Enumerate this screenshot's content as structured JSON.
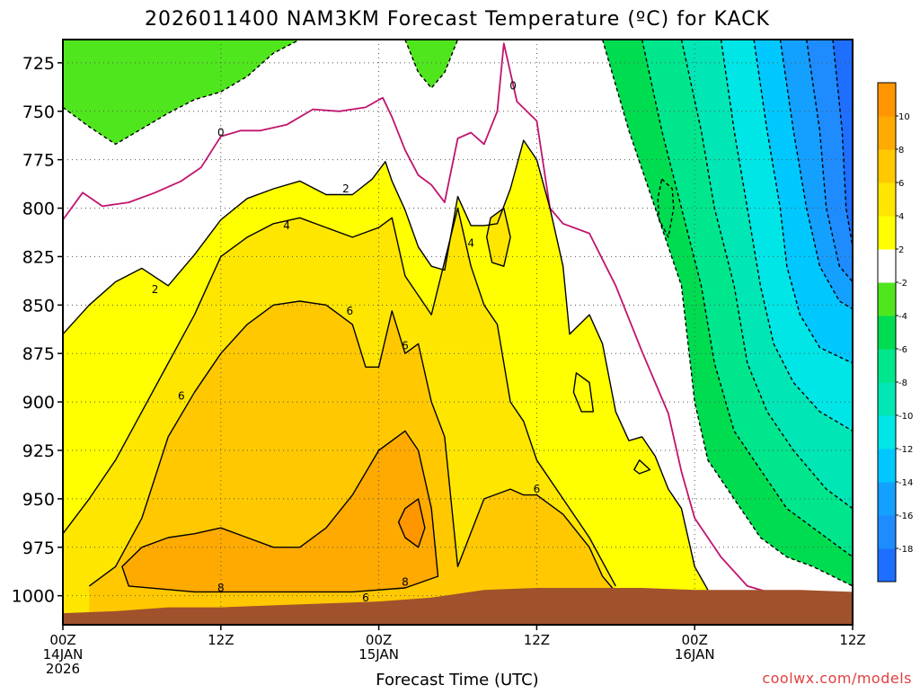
{
  "chart_data": {
    "type": "heatmap",
    "title": "2026011400 NAM3KM Forecast Temperature (ºC) for KACK",
    "xlabel": "Forecast Time (UTC)",
    "ylabel": "",
    "watermark": "coolwx.com/models",
    "x_unit": "forecast hour from 2026-01-14 00Z",
    "xlim": [
      0,
      60
    ],
    "ylim_hPa": [
      1015,
      713
    ],
    "y_ticks": [
      725,
      750,
      775,
      800,
      825,
      850,
      875,
      900,
      925,
      950,
      975,
      1000
    ],
    "x_ticks": [
      {
        "hour": 0,
        "lines": [
          "00Z",
          "14JAN",
          "2026"
        ]
      },
      {
        "hour": 12,
        "lines": [
          "12Z"
        ]
      },
      {
        "hour": 24,
        "lines": [
          "00Z",
          "15JAN"
        ]
      },
      {
        "hour": 36,
        "lines": [
          "12Z"
        ]
      },
      {
        "hour": 48,
        "lines": [
          "00Z",
          "16JAN"
        ]
      },
      {
        "hour": 60,
        "lines": [
          "12Z"
        ]
      }
    ],
    "colorbar": {
      "levels": [
        -20,
        -18,
        -16,
        -14,
        -12,
        -10,
        -8,
        -6,
        -4,
        -2,
        2,
        4,
        6,
        8,
        10,
        12
      ],
      "tick_labels": [
        "-18",
        "-16",
        "-14",
        "-12",
        "-10",
        "-8",
        "-6",
        "-4",
        "-2",
        "2",
        "4",
        "6",
        "8",
        "10"
      ],
      "colors": [
        "#1e6eff",
        "#1e8cff",
        "#14a0ff",
        "#00c8ff",
        "#00e6e6",
        "#00e6b4",
        "#00e68c",
        "#00dc50",
        "#50e61e",
        "#ffffff",
        "#ffff00",
        "#ffe600",
        "#ffc800",
        "#ffaa00",
        "#ff9600"
      ]
    },
    "contour_labels": [
      {
        "text": "0",
        "hour": 12,
        "p": 761
      },
      {
        "text": "0",
        "hour": 34.2,
        "p": 737
      },
      {
        "text": "2",
        "hour": 21.5,
        "p": 790
      },
      {
        "text": "2",
        "hour": 7,
        "p": 842
      },
      {
        "text": "4",
        "hour": 17,
        "p": 809
      },
      {
        "text": "4",
        "hour": 31,
        "p": 818
      },
      {
        "text": "6",
        "hour": 21.8,
        "p": 853
      },
      {
        "text": "6",
        "hour": 26,
        "p": 871
      },
      {
        "text": "6",
        "hour": 9,
        "p": 897
      },
      {
        "text": "6",
        "hour": 36,
        "p": 945
      },
      {
        "text": "6",
        "hour": 23,
        "p": 1001
      },
      {
        "text": "8",
        "hour": 12,
        "p": 996
      },
      {
        "text": "8",
        "hour": 26,
        "p": 993
      }
    ],
    "terrain_color": "#a0522d",
    "surface_pressure": [
      [
        0,
        1009
      ],
      [
        4,
        1008
      ],
      [
        8,
        1006
      ],
      [
        12,
        1006
      ],
      [
        16,
        1005
      ],
      [
        20,
        1004
      ],
      [
        24,
        1003
      ],
      [
        28,
        1001
      ],
      [
        32,
        997
      ],
      [
        36,
        996
      ],
      [
        40,
        996
      ],
      [
        44,
        996
      ],
      [
        48,
        997
      ],
      [
        52,
        997
      ],
      [
        56,
        997
      ],
      [
        60,
        998
      ]
    ],
    "isotherms": [
      {
        "level": -2,
        "points": [
          [
            0,
            748
          ],
          [
            2,
            758
          ],
          [
            4,
            767
          ],
          [
            6,
            759
          ],
          [
            8,
            751
          ],
          [
            10,
            744
          ],
          [
            12,
            740
          ],
          [
            14,
            732
          ],
          [
            16,
            720
          ],
          [
            18,
            713
          ]
        ]
      },
      {
        "level": -2,
        "points": [
          [
            26,
            713
          ],
          [
            27,
            730
          ],
          [
            28,
            738
          ],
          [
            29,
            730
          ],
          [
            30,
            713
          ]
        ]
      },
      {
        "level": 0,
        "points": [
          [
            0,
            806
          ],
          [
            1.5,
            792
          ],
          [
            3,
            799
          ],
          [
            5,
            797
          ],
          [
            7,
            792
          ],
          [
            9,
            786
          ],
          [
            10.5,
            779
          ],
          [
            12,
            763
          ],
          [
            13.5,
            760
          ],
          [
            15,
            760
          ],
          [
            17,
            757
          ],
          [
            19,
            749
          ],
          [
            21,
            750
          ],
          [
            23,
            748
          ],
          [
            24.3,
            743
          ],
          [
            25,
            753
          ],
          [
            26,
            770
          ],
          [
            27,
            783
          ],
          [
            28,
            788
          ],
          [
            29,
            797
          ],
          [
            30,
            764
          ],
          [
            31,
            761
          ],
          [
            32,
            767
          ],
          [
            33,
            750
          ],
          [
            33.5,
            715
          ],
          [
            34.5,
            745
          ],
          [
            36,
            755
          ],
          [
            37,
            800
          ],
          [
            38,
            808
          ],
          [
            40,
            813
          ],
          [
            42,
            840
          ],
          [
            44,
            874
          ],
          [
            46,
            906
          ],
          [
            47,
            936
          ],
          [
            48,
            960
          ],
          [
            50,
            980
          ],
          [
            52,
            995
          ],
          [
            54,
            999
          ],
          [
            56,
            999
          ]
        ]
      },
      {
        "level": 2,
        "points": [
          [
            0,
            865
          ],
          [
            2,
            850
          ],
          [
            4,
            838
          ],
          [
            6,
            831
          ],
          [
            8,
            840
          ],
          [
            10,
            824
          ],
          [
            12,
            806
          ],
          [
            14,
            795
          ],
          [
            16,
            790
          ],
          [
            18,
            786
          ],
          [
            20,
            793
          ],
          [
            22,
            793
          ],
          [
            23.5,
            785
          ],
          [
            24.5,
            776
          ],
          [
            25,
            786
          ],
          [
            26,
            801
          ],
          [
            27,
            820
          ],
          [
            28,
            830
          ],
          [
            29,
            832
          ],
          [
            30,
            794
          ],
          [
            31,
            809
          ],
          [
            32,
            809
          ],
          [
            33,
            808
          ],
          [
            34,
            790
          ],
          [
            35,
            765
          ],
          [
            36,
            775
          ],
          [
            37,
            800
          ],
          [
            38,
            830
          ],
          [
            38.5,
            865
          ],
          [
            40,
            855
          ],
          [
            41,
            870
          ],
          [
            42,
            905
          ],
          [
            43,
            920
          ],
          [
            44,
            918
          ],
          [
            45,
            928
          ],
          [
            46,
            945
          ],
          [
            47,
            955
          ],
          [
            48,
            985
          ],
          [
            49,
            997
          ]
        ]
      },
      {
        "level": 4,
        "points": [
          [
            0,
            968
          ],
          [
            2,
            950
          ],
          [
            4,
            930
          ],
          [
            6,
            905
          ],
          [
            8,
            880
          ],
          [
            10,
            855
          ],
          [
            12,
            825
          ],
          [
            14,
            815
          ],
          [
            16,
            808
          ],
          [
            18,
            805
          ],
          [
            20,
            810
          ],
          [
            22,
            815
          ],
          [
            24,
            810
          ],
          [
            25,
            805
          ],
          [
            26,
            835
          ],
          [
            28,
            855
          ],
          [
            30,
            800
          ],
          [
            31,
            830
          ],
          [
            32,
            850
          ],
          [
            33,
            860
          ],
          [
            34,
            900
          ],
          [
            35,
            910
          ],
          [
            36,
            930
          ],
          [
            38,
            950
          ],
          [
            40,
            970
          ],
          [
            42,
            995
          ]
        ]
      },
      {
        "level": 6,
        "points": [
          [
            2,
            995
          ],
          [
            4,
            985
          ],
          [
            6,
            960
          ],
          [
            8,
            918
          ],
          [
            10,
            895
          ],
          [
            12,
            875
          ],
          [
            14,
            860
          ],
          [
            16,
            850
          ],
          [
            18,
            848
          ],
          [
            20,
            850
          ],
          [
            22,
            860
          ],
          [
            23,
            882
          ],
          [
            24,
            882
          ],
          [
            25,
            853
          ],
          [
            26,
            875
          ],
          [
            27,
            870
          ],
          [
            28,
            900
          ],
          [
            29,
            918
          ],
          [
            30,
            985
          ],
          [
            32,
            950
          ],
          [
            34,
            945
          ],
          [
            35,
            948
          ],
          [
            36,
            948
          ],
          [
            38,
            958
          ],
          [
            40,
            975
          ],
          [
            41,
            990
          ],
          [
            42,
            998
          ]
        ]
      },
      {
        "level": 8,
        "points": [
          [
            4.5,
            985
          ],
          [
            6,
            975
          ],
          [
            8,
            970
          ],
          [
            10,
            968
          ],
          [
            12,
            965
          ],
          [
            14,
            970
          ],
          [
            16,
            975
          ],
          [
            18,
            975
          ],
          [
            20,
            965
          ],
          [
            22,
            948
          ],
          [
            24,
            925
          ],
          [
            26,
            915
          ],
          [
            27,
            925
          ],
          [
            28,
            955
          ],
          [
            28.5,
            990
          ],
          [
            26,
            996
          ],
          [
            22,
            998
          ],
          [
            16,
            998
          ],
          [
            10,
            998
          ],
          [
            5,
            995
          ]
        ]
      },
      {
        "level": 10,
        "points": [
          [
            26,
            955
          ],
          [
            27,
            950
          ],
          [
            27.5,
            965
          ],
          [
            27,
            975
          ],
          [
            26,
            970
          ],
          [
            25.5,
            962
          ]
        ]
      },
      {
        "level": -4,
        "points": [
          [
            41,
            713
          ],
          [
            43,
            760
          ],
          [
            45,
            800
          ],
          [
            47,
            840
          ],
          [
            48,
            900
          ],
          [
            49,
            930
          ],
          [
            51,
            950
          ],
          [
            53,
            970
          ],
          [
            55,
            980
          ],
          [
            57,
            985
          ],
          [
            60,
            995
          ]
        ]
      },
      {
        "level": -6,
        "points": [
          [
            44,
            713
          ],
          [
            45.5,
            760
          ],
          [
            47,
            800
          ],
          [
            48.5,
            840
          ],
          [
            49.5,
            880
          ],
          [
            51,
            915
          ],
          [
            53,
            935
          ],
          [
            55,
            955
          ],
          [
            58,
            970
          ],
          [
            60,
            980
          ]
        ]
      },
      {
        "level": -8,
        "points": [
          [
            47,
            713
          ],
          [
            48.5,
            760
          ],
          [
            49.5,
            800
          ],
          [
            51,
            840
          ],
          [
            52,
            880
          ],
          [
            53.5,
            905
          ],
          [
            55.5,
            925
          ],
          [
            58,
            945
          ],
          [
            60,
            955
          ]
        ]
      },
      {
        "level": -10,
        "points": [
          [
            50,
            713
          ],
          [
            51,
            760
          ],
          [
            52,
            800
          ],
          [
            53,
            840
          ],
          [
            54,
            870
          ],
          [
            55.5,
            890
          ],
          [
            57.5,
            905
          ],
          [
            60,
            915
          ]
        ]
      },
      {
        "level": -12,
        "points": [
          [
            52.5,
            713
          ],
          [
            53.5,
            760
          ],
          [
            54.5,
            800
          ],
          [
            55,
            830
          ],
          [
            56,
            855
          ],
          [
            57.5,
            872
          ],
          [
            60,
            880
          ]
        ]
      },
      {
        "level": -14,
        "points": [
          [
            54.5,
            713
          ],
          [
            55.5,
            760
          ],
          [
            56.5,
            800
          ],
          [
            57.5,
            830
          ],
          [
            59,
            848
          ],
          [
            60,
            852
          ]
        ]
      },
      {
        "level": -16,
        "points": [
          [
            56.5,
            713
          ],
          [
            57.5,
            760
          ],
          [
            58,
            800
          ],
          [
            59,
            830
          ],
          [
            60,
            838
          ]
        ]
      },
      {
        "level": -18,
        "points": [
          [
            58.5,
            713
          ],
          [
            59.2,
            760
          ],
          [
            59.5,
            800
          ],
          [
            60,
            820
          ]
        ]
      }
    ],
    "small_contours": [
      {
        "level": 4,
        "points": [
          [
            32.5,
            805
          ],
          [
            33.5,
            800
          ],
          [
            34,
            815
          ],
          [
            33.5,
            830
          ],
          [
            32.6,
            828
          ],
          [
            32.2,
            815
          ]
        ]
      },
      {
        "level": 2,
        "points": [
          [
            39,
            885
          ],
          [
            40,
            890
          ],
          [
            40.3,
            905
          ],
          [
            39.4,
            905
          ],
          [
            38.8,
            895
          ]
        ]
      },
      {
        "level": -8,
        "points": [
          [
            45.5,
            785
          ],
          [
            46.3,
            790
          ],
          [
            46.4,
            800
          ],
          [
            46,
            815
          ],
          [
            45.3,
            806
          ],
          [
            45.2,
            795
          ]
        ]
      },
      {
        "level": 2,
        "points": [
          [
            43.8,
            930
          ],
          [
            44.6,
            935
          ],
          [
            43.8,
            937
          ],
          [
            43.4,
            935
          ]
        ]
      }
    ]
  }
}
